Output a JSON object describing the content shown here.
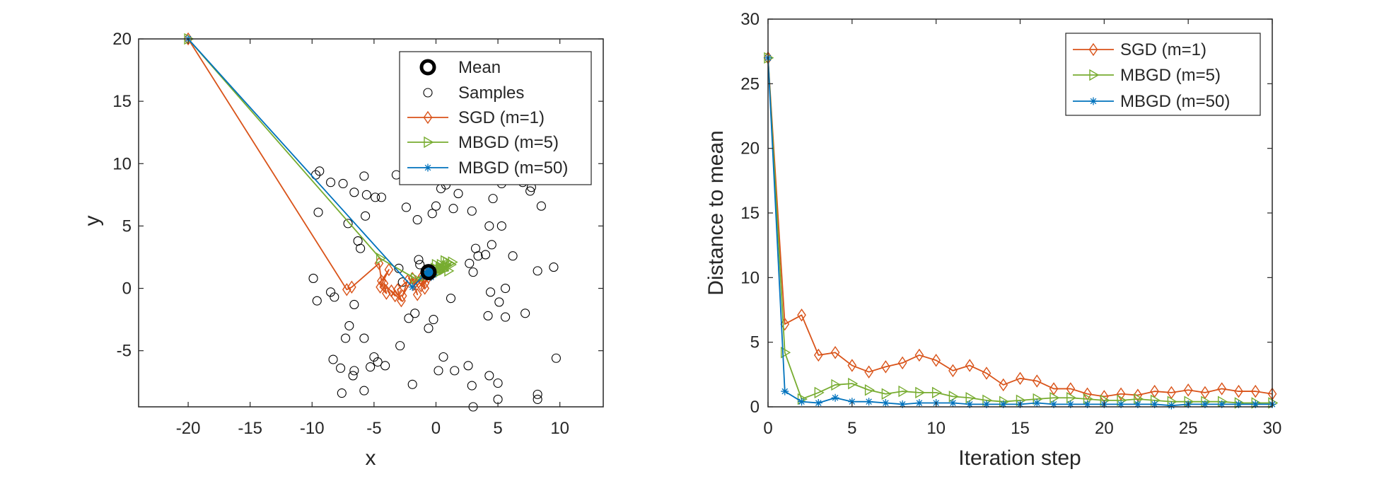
{
  "colors": {
    "sgd": "#D95319",
    "mbgd5": "#77AC30",
    "mbgd50": "#0072BD",
    "axis": "#262626",
    "marker": "#000000"
  },
  "chart_data": [
    {
      "type": "scatter",
      "xlabel": "x",
      "ylabel": "y",
      "xlim": [
        -24,
        13.5
      ],
      "ylim": [
        -9.5,
        20
      ],
      "xticks": [
        -20,
        -15,
        -10,
        -5,
        0,
        5,
        10
      ],
      "yticks": [
        -5,
        0,
        5,
        10,
        15,
        20
      ],
      "grid": false,
      "legend_position": "top-right",
      "mean": {
        "name": "Mean",
        "x": -0.6,
        "y": 1.3
      },
      "samples": {
        "name": "Samples",
        "points": [
          [
            -9.7,
            9.1
          ],
          [
            -9.4,
            9.4
          ],
          [
            -8.5,
            8.5
          ],
          [
            -7.5,
            8.4
          ],
          [
            -6.6,
            7.7
          ],
          [
            -5.8,
            9.0
          ],
          [
            -5.6,
            7.5
          ],
          [
            -4.9,
            7.3
          ],
          [
            -4.4,
            7.3
          ],
          [
            -9.5,
            6.1
          ],
          [
            -5.7,
            5.8
          ],
          [
            -7.1,
            5.2
          ],
          [
            -6.3,
            3.8
          ],
          [
            -6.1,
            3.2
          ],
          [
            -3.2,
            9.1
          ],
          [
            -2.4,
            6.5
          ],
          [
            -1.5,
            5.5
          ],
          [
            -0.3,
            6.0
          ],
          [
            0.0,
            6.6
          ],
          [
            0.4,
            8.0
          ],
          [
            0.8,
            8.3
          ],
          [
            1.8,
            7.6
          ],
          [
            1.4,
            6.4
          ],
          [
            2.9,
            6.2
          ],
          [
            4.8,
            9.2
          ],
          [
            4.6,
            7.2
          ],
          [
            5.3,
            8.4
          ],
          [
            7.0,
            8.5
          ],
          [
            7.6,
            7.8
          ],
          [
            7.7,
            8.1
          ],
          [
            8.5,
            6.6
          ],
          [
            4.3,
            5.0
          ],
          [
            5.3,
            5.0
          ],
          [
            3.2,
            3.2
          ],
          [
            3.4,
            2.6
          ],
          [
            4.5,
            3.5
          ],
          [
            4.0,
            2.7
          ],
          [
            2.7,
            2.0
          ],
          [
            6.2,
            2.6
          ],
          [
            8.2,
            1.4
          ],
          [
            9.5,
            1.7
          ],
          [
            -1.4,
            2.3
          ],
          [
            -1.3,
            1.9
          ],
          [
            -9.9,
            0.8
          ],
          [
            -9.6,
            -1.0
          ],
          [
            -8.5,
            -0.3
          ],
          [
            -8.2,
            -0.7
          ],
          [
            -6.6,
            -1.3
          ],
          [
            -7.0,
            -3.0
          ],
          [
            -7.3,
            -4.0
          ],
          [
            -5.8,
            -4.0
          ],
          [
            -3.0,
            1.6
          ],
          [
            -2.7,
            0.5
          ],
          [
            -2.2,
            -2.4
          ],
          [
            -1.7,
            -2.0
          ],
          [
            -0.6,
            -3.2
          ],
          [
            -0.2,
            -2.5
          ],
          [
            1.2,
            -0.8
          ],
          [
            3.0,
            1.3
          ],
          [
            4.2,
            -2.2
          ],
          [
            4.4,
            -0.3
          ],
          [
            5.1,
            -1.1
          ],
          [
            5.6,
            0.0
          ],
          [
            5.6,
            -2.3
          ],
          [
            7.2,
            -2.0
          ],
          [
            -8.3,
            -5.7
          ],
          [
            -7.7,
            -6.4
          ],
          [
            -6.6,
            -6.6
          ],
          [
            -6.7,
            -7.0
          ],
          [
            -5.0,
            -5.5
          ],
          [
            -4.7,
            -5.9
          ],
          [
            -5.3,
            -6.3
          ],
          [
            -4.1,
            -6.2
          ],
          [
            -2.9,
            -4.6
          ],
          [
            0.6,
            -5.5
          ],
          [
            0.2,
            -6.6
          ],
          [
            1.5,
            -6.6
          ],
          [
            2.6,
            -6.2
          ],
          [
            2.9,
            -7.8
          ],
          [
            4.3,
            -7.0
          ],
          [
            5.0,
            -7.6
          ],
          [
            5.0,
            -8.9
          ],
          [
            -1.9,
            -7.7
          ],
          [
            -5.8,
            -8.2
          ],
          [
            -7.6,
            -8.4
          ],
          [
            3.0,
            -9.5
          ],
          [
            8.2,
            -8.5
          ],
          [
            8.2,
            -8.9
          ],
          [
            9.7,
            -5.6
          ]
        ]
      },
      "series": [
        {
          "name": "SGD (m=1)",
          "color": "#D95319",
          "marker": "diamond",
          "x": [
            -20,
            -7.2,
            -6.8,
            -4.6,
            -4.4,
            -3.8,
            -4.5,
            -4.0,
            -4.2,
            -3.3,
            -3.6,
            -2.8,
            -3.1,
            -2.3,
            -2.7,
            -1.9,
            -1.5,
            -1.8,
            -1.1,
            -0.9,
            -1.4,
            -0.7,
            -1.2,
            -0.6,
            -0.9,
            -0.4
          ],
          "y": [
            20,
            -0.1,
            0.1,
            2.0,
            0.6,
            1.5,
            0.1,
            -0.4,
            0.4,
            -0.6,
            -0.2,
            -1.0,
            -0.1,
            0.6,
            -0.6,
            0.8,
            -0.5,
            0.3,
            1.0,
            0.0,
            0.5,
            1.2,
            0.2,
            0.9,
            0.4,
            1.1
          ]
        },
        {
          "name": "MBGD (m=5)",
          "color": "#77AC30",
          "marker": "triangle-right",
          "x": [
            -20,
            -4.5,
            -1.7,
            -0.9,
            0.4,
            0.9,
            0.3,
            0.7,
            0.1,
            1.1,
            0.5,
            1.3,
            0.2,
            0.8,
            0.0,
            1.0,
            -0.3,
            0.4,
            0.6,
            -0.1,
            1.2,
            0.3
          ],
          "y": [
            20,
            2.4,
            0.8,
            1.0,
            1.9,
            2.1,
            1.7,
            2.2,
            1.5,
            2.0,
            1.6,
            2.1,
            1.3,
            1.8,
            1.9,
            1.4,
            1.2,
            1.7,
            1.5,
            1.6,
            1.9,
            1.4
          ]
        },
        {
          "name": "MBGD (m=50)",
          "color": "#0072BD",
          "marker": "asterisk",
          "x": [
            -20,
            -1.9,
            -1.0,
            -0.5,
            -0.2,
            -0.7,
            -0.4,
            -0.8,
            -0.3,
            -0.6,
            -0.5,
            -0.7,
            -0.4,
            -0.6,
            -0.5,
            -0.6
          ],
          "y": [
            20,
            0.1,
            1.0,
            1.6,
            1.1,
            1.4,
            0.9,
            1.2,
            1.5,
            1.0,
            1.3,
            1.2,
            1.4,
            1.1,
            1.3,
            1.2
          ]
        }
      ]
    },
    {
      "type": "line",
      "xlabel": "Iteration step",
      "ylabel": "Distance to mean",
      "xlim": [
        0,
        30
      ],
      "ylim": [
        0,
        30
      ],
      "xticks": [
        0,
        5,
        10,
        15,
        20,
        25,
        30
      ],
      "yticks": [
        0,
        5,
        10,
        15,
        20,
        25,
        30
      ],
      "grid": false,
      "legend_position": "top-right",
      "x": [
        0,
        1,
        2,
        3,
        4,
        5,
        6,
        7,
        8,
        9,
        10,
        11,
        12,
        13,
        14,
        15,
        16,
        17,
        18,
        19,
        20,
        21,
        22,
        23,
        24,
        25,
        26,
        27,
        28,
        29,
        30
      ],
      "series": [
        {
          "name": "SGD (m=1)",
          "color": "#D95319",
          "marker": "diamond",
          "values": [
            27.0,
            6.4,
            7.1,
            4.0,
            4.2,
            3.2,
            2.7,
            3.1,
            3.4,
            4.0,
            3.6,
            2.8,
            3.2,
            2.6,
            1.7,
            2.2,
            2.0,
            1.4,
            1.4,
            1.0,
            0.8,
            1.0,
            0.9,
            1.2,
            1.1,
            1.3,
            1.1,
            1.4,
            1.2,
            1.2,
            1.0
          ]
        },
        {
          "name": "MBGD (m=5)",
          "color": "#77AC30",
          "marker": "triangle-right",
          "values": [
            27.0,
            4.2,
            0.6,
            1.1,
            1.7,
            1.8,
            1.3,
            1.0,
            1.2,
            1.1,
            1.1,
            0.8,
            0.7,
            0.5,
            0.4,
            0.5,
            0.6,
            0.7,
            0.7,
            0.6,
            0.5,
            0.5,
            0.6,
            0.5,
            0.4,
            0.4,
            0.4,
            0.4,
            0.3,
            0.3,
            0.3
          ]
        },
        {
          "name": "MBGD (m=50)",
          "color": "#0072BD",
          "marker": "asterisk",
          "values": [
            27.0,
            1.2,
            0.4,
            0.3,
            0.7,
            0.4,
            0.4,
            0.3,
            0.2,
            0.3,
            0.3,
            0.3,
            0.2,
            0.2,
            0.2,
            0.2,
            0.3,
            0.2,
            0.2,
            0.2,
            0.2,
            0.2,
            0.2,
            0.2,
            0.1,
            0.2,
            0.2,
            0.2,
            0.2,
            0.2,
            0.2
          ]
        }
      ]
    }
  ]
}
